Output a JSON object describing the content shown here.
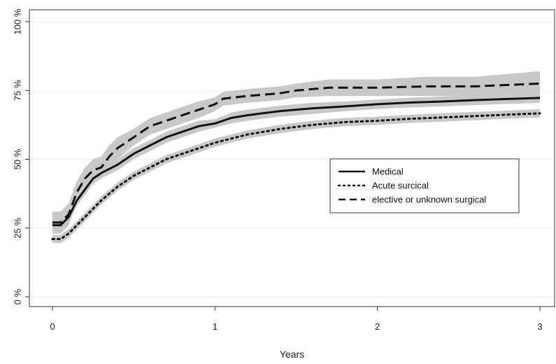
{
  "chart_data": {
    "type": "line",
    "title": "",
    "xlabel": "Years",
    "ylabel": "",
    "xlim": [
      0,
      3
    ],
    "ylim": [
      0,
      100
    ],
    "x_ticks": [
      "0",
      "1",
      "2",
      "3"
    ],
    "y_ticks": [
      "0 %",
      "25 %",
      "50 %",
      "75 %",
      "100 %"
    ],
    "grid": "horizontal",
    "legend_position": "center-right",
    "band_color": "#c8c8c8",
    "line_color": "#111111",
    "series": [
      {
        "name": "Medical",
        "style": "solid",
        "x": [
          0,
          0.05,
          0.1,
          0.15,
          0.2,
          0.25,
          0.3,
          0.4,
          0.5,
          0.6,
          0.7,
          0.8,
          0.9,
          1.0,
          1.1,
          1.2,
          1.4,
          1.6,
          1.8,
          2.0,
          2.2,
          2.4,
          2.6,
          2.8,
          3.0
        ],
        "values": [
          26,
          26,
          29,
          35,
          39,
          43,
          45,
          48,
          52,
          55,
          58,
          60,
          62,
          63,
          65,
          66,
          67.5,
          68.5,
          69.2,
          70,
          70.6,
          71,
          71.5,
          71.9,
          72.3
        ],
        "lower": [
          24,
          24,
          27,
          33,
          37,
          41,
          43,
          46,
          50,
          53,
          56,
          58,
          60,
          61.5,
          63,
          64,
          65.5,
          66.5,
          67.5,
          68.3,
          68.8,
          69.2,
          69.7,
          70.1,
          70.5
        ],
        "upper": [
          28,
          28,
          31,
          37,
          41,
          45,
          47,
          50,
          54,
          57,
          60,
          62,
          64,
          64.5,
          67,
          68,
          69.5,
          70.5,
          71,
          71.7,
          72.4,
          72.8,
          73.3,
          73.7,
          74.1
        ]
      },
      {
        "name": "Acute surcical",
        "style": "dotted",
        "x": [
          0,
          0.05,
          0.1,
          0.15,
          0.2,
          0.25,
          0.3,
          0.4,
          0.5,
          0.6,
          0.7,
          0.8,
          0.9,
          1.0,
          1.1,
          1.2,
          1.4,
          1.6,
          1.8,
          2.0,
          2.2,
          2.4,
          2.6,
          2.8,
          3.0
        ],
        "values": [
          21,
          21,
          23,
          26,
          29,
          32,
          35,
          40,
          44,
          47,
          50,
          52,
          54,
          56,
          57.5,
          59,
          61,
          62.5,
          63.5,
          64,
          64.7,
          65.2,
          65.7,
          66.2,
          66.7
        ],
        "lower": [
          19.5,
          19.5,
          21.5,
          24.5,
          27.5,
          30.5,
          33.5,
          38.5,
          42.5,
          45.5,
          48.5,
          50.5,
          52.5,
          54.5,
          56,
          57.5,
          59.5,
          61,
          62,
          62.5,
          63.2,
          63.7,
          64.2,
          64.7,
          65.2
        ],
        "upper": [
          22.5,
          22.5,
          24.5,
          27.5,
          30.5,
          33.5,
          36.5,
          41.5,
          45.5,
          48.5,
          51.5,
          53.5,
          55.5,
          57.5,
          59,
          60.5,
          62.5,
          64,
          65,
          65.5,
          66.2,
          66.7,
          67.2,
          67.7,
          68.2
        ]
      },
      {
        "name": "elective or unknown surgical",
        "style": "dashed",
        "x": [
          0,
          0.05,
          0.1,
          0.15,
          0.2,
          0.25,
          0.3,
          0.35,
          0.4,
          0.5,
          0.6,
          0.7,
          0.8,
          0.9,
          1.0,
          1.05,
          1.2,
          1.4,
          1.5,
          1.7,
          2.0,
          2.3,
          2.6,
          2.8,
          3.0
        ],
        "values": [
          27,
          27,
          30,
          38,
          43,
          46,
          47,
          51,
          54,
          58,
          62,
          64,
          66,
          68,
          70,
          72,
          73,
          74,
          75,
          76,
          76,
          76.5,
          76.5,
          77,
          77.5
        ],
        "lower": [
          23,
          23,
          26,
          34,
          39,
          42,
          43,
          47,
          50,
          55,
          59,
          61,
          63,
          65,
          67.5,
          69.5,
          70.5,
          71.5,
          72.5,
          73,
          73,
          73,
          73,
          73,
          73
        ],
        "upper": [
          31,
          31,
          34,
          42,
          47,
          50,
          51,
          55,
          58,
          61,
          65,
          67,
          69,
          71,
          72.5,
          74.5,
          75.5,
          76.5,
          77.5,
          79,
          79,
          80,
          80,
          81,
          82
        ]
      }
    ]
  }
}
